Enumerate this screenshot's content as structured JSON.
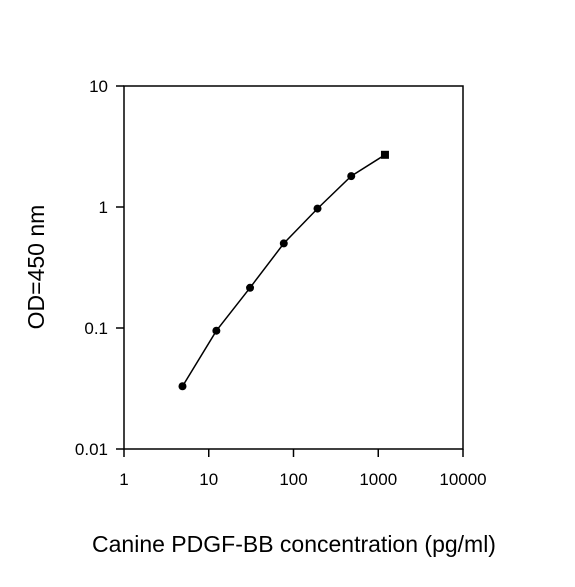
{
  "chart_data": {
    "type": "line",
    "title": "",
    "xlabel": "Canine PDGF-BB concentration (pg/ml)",
    "ylabel": "OD=450 nm",
    "x_scale": "log",
    "y_scale": "log",
    "xlim": [
      1,
      10000
    ],
    "ylim": [
      0.01,
      10
    ],
    "x_ticks": [
      1,
      10,
      100,
      1000,
      10000
    ],
    "x_tick_labels": [
      "1",
      "10",
      "100",
      "1000",
      "10000"
    ],
    "y_ticks": [
      0.01,
      0.1,
      1,
      10
    ],
    "y_tick_labels": [
      "0.01",
      "0.1",
      "1",
      "10"
    ],
    "grid": false,
    "legend": "none",
    "series": [
      {
        "x": [
          4.9,
          12.3,
          30.7,
          76.8,
          192,
          480,
          1200
        ],
        "y": [
          0.033,
          0.095,
          0.215,
          0.5,
          0.97,
          1.8,
          2.7
        ],
        "color": "#000000"
      }
    ]
  }
}
